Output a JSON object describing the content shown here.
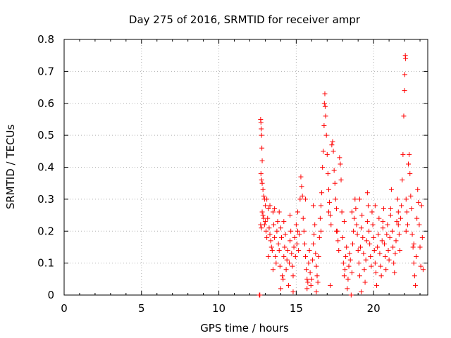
{
  "chart_data": {
    "type": "scatter",
    "title": "Day 275 of 2016, SRMTID for receiver ampr",
    "xlabel": "GPS time / hours",
    "ylabel": "SRMTID / TECUs",
    "xlim": [
      0,
      23.5
    ],
    "ylim": [
      0,
      0.8
    ],
    "xticks": [
      "0",
      "5",
      "10",
      "15",
      "20"
    ],
    "xtick_values": [
      0,
      5,
      10,
      15,
      20
    ],
    "yticks": [
      "0",
      "0.1",
      "0.2",
      "0.3",
      "0.4",
      "0.5",
      "0.6",
      "0.7",
      "0.8"
    ],
    "ytick_values": [
      0,
      0.1,
      0.2,
      0.3,
      0.4,
      0.5,
      0.6,
      0.7,
      0.8
    ],
    "grid": true,
    "marker": "+",
    "series_color": "#ff0000",
    "series": [
      {
        "name": "SRMTID",
        "points": [
          [
            12.62,
            0.0
          ],
          [
            12.65,
            0.0
          ],
          [
            12.7,
            0.55
          ],
          [
            12.72,
            0.54
          ],
          [
            12.74,
            0.52
          ],
          [
            12.76,
            0.5
          ],
          [
            12.78,
            0.46
          ],
          [
            12.8,
            0.42
          ],
          [
            12.72,
            0.38
          ],
          [
            12.76,
            0.36
          ],
          [
            12.8,
            0.35
          ],
          [
            12.85,
            0.33
          ],
          [
            12.9,
            0.31
          ],
          [
            12.95,
            0.3
          ],
          [
            13.0,
            0.28
          ],
          [
            12.7,
            0.22
          ],
          [
            12.75,
            0.21
          ],
          [
            12.8,
            0.26
          ],
          [
            12.85,
            0.25
          ],
          [
            12.9,
            0.24
          ],
          [
            12.95,
            0.22
          ],
          [
            13.0,
            0.23
          ],
          [
            13.05,
            0.2
          ],
          [
            13.1,
            0.18
          ],
          [
            13.15,
            0.24
          ],
          [
            13.2,
            0.27
          ],
          [
            13.25,
            0.21
          ],
          [
            13.3,
            0.19
          ],
          [
            13.35,
            0.17
          ],
          [
            13.4,
            0.15
          ],
          [
            13.45,
            0.14
          ],
          [
            13.5,
            0.26
          ],
          [
            13.55,
            0.22
          ],
          [
            13.6,
            0.18
          ],
          [
            13.65,
            0.12
          ],
          [
            13.7,
            0.1
          ],
          [
            13.75,
            0.2
          ],
          [
            13.8,
            0.23
          ],
          [
            13.85,
            0.16
          ],
          [
            13.9,
            0.14
          ],
          [
            13.95,
            0.09
          ],
          [
            14.0,
            0.21
          ],
          [
            14.05,
            0.18
          ],
          [
            14.1,
            0.06
          ],
          [
            14.15,
            0.05
          ],
          [
            14.2,
            0.12
          ],
          [
            14.25,
            0.15
          ],
          [
            14.3,
            0.19
          ],
          [
            14.35,
            0.08
          ],
          [
            14.4,
            0.11
          ],
          [
            14.45,
            0.14
          ],
          [
            14.5,
            0.03
          ],
          [
            14.55,
            0.1
          ],
          [
            14.6,
            0.17
          ],
          [
            14.65,
            0.2
          ],
          [
            14.7,
            0.13
          ],
          [
            14.75,
            0.09
          ],
          [
            14.8,
            0.06
          ],
          [
            14.85,
            0.15
          ],
          [
            14.9,
            0.18
          ],
          [
            14.95,
            0.12
          ],
          [
            15.0,
            0.22
          ],
          [
            15.05,
            0.16
          ],
          [
            15.1,
            0.26
          ],
          [
            15.15,
            0.14
          ],
          [
            15.2,
            0.19
          ],
          [
            15.25,
            0.3
          ],
          [
            15.3,
            0.37
          ],
          [
            15.35,
            0.34
          ],
          [
            15.4,
            0.31
          ],
          [
            15.45,
            0.24
          ],
          [
            15.5,
            0.2
          ],
          [
            15.55,
            0.16
          ],
          [
            15.6,
            0.12
          ],
          [
            15.65,
            0.08
          ],
          [
            15.7,
            0.05
          ],
          [
            15.75,
            0.04
          ],
          [
            15.8,
            0.1
          ],
          [
            15.85,
            0.14
          ],
          [
            15.9,
            0.07
          ],
          [
            15.95,
            0.03
          ],
          [
            16.0,
            0.05
          ],
          [
            16.05,
            0.11
          ],
          [
            16.1,
            0.16
          ],
          [
            16.15,
            0.19
          ],
          [
            16.2,
            0.22
          ],
          [
            16.25,
            0.13
          ],
          [
            16.3,
            0.09
          ],
          [
            16.35,
            0.06
          ],
          [
            16.4,
            0.04
          ],
          [
            16.45,
            0.12
          ],
          [
            16.5,
            0.18
          ],
          [
            16.55,
            0.24
          ],
          [
            16.6,
            0.28
          ],
          [
            16.65,
            0.32
          ],
          [
            16.7,
            0.4
          ],
          [
            16.75,
            0.45
          ],
          [
            16.8,
            0.53
          ],
          [
            16.82,
            0.6
          ],
          [
            16.85,
            0.63
          ],
          [
            16.87,
            0.59
          ],
          [
            16.9,
            0.56
          ],
          [
            16.95,
            0.5
          ],
          [
            17.0,
            0.44
          ],
          [
            17.05,
            0.38
          ],
          [
            17.1,
            0.33
          ],
          [
            17.15,
            0.29
          ],
          [
            17.2,
            0.25
          ],
          [
            17.25,
            0.22
          ],
          [
            17.3,
            0.47
          ],
          [
            17.35,
            0.48
          ],
          [
            17.4,
            0.45
          ],
          [
            17.45,
            0.39
          ],
          [
            17.5,
            0.35
          ],
          [
            17.55,
            0.3
          ],
          [
            17.6,
            0.27
          ],
          [
            17.65,
            0.2
          ],
          [
            17.7,
            0.17
          ],
          [
            17.75,
            0.14
          ],
          [
            17.8,
            0.43
          ],
          [
            17.85,
            0.41
          ],
          [
            17.9,
            0.36
          ],
          [
            17.95,
            0.26
          ],
          [
            18.0,
            0.18
          ],
          [
            18.05,
            0.1
          ],
          [
            18.1,
            0.06
          ],
          [
            18.15,
            0.08
          ],
          [
            18.2,
            0.12
          ],
          [
            18.25,
            0.15
          ],
          [
            18.3,
            0.02
          ],
          [
            18.35,
            0.05
          ],
          [
            18.4,
            0.09
          ],
          [
            18.45,
            0.13
          ],
          [
            18.5,
            0.11
          ],
          [
            18.55,
            0.0
          ],
          [
            18.6,
            0.07
          ],
          [
            18.65,
            0.16
          ],
          [
            18.7,
            0.2
          ],
          [
            18.75,
            0.24
          ],
          [
            18.8,
            0.3
          ],
          [
            18.85,
            0.27
          ],
          [
            18.9,
            0.22
          ],
          [
            18.95,
            0.19
          ],
          [
            19.0,
            0.14
          ],
          [
            19.05,
            0.1
          ],
          [
            19.1,
            0.06
          ],
          [
            19.15,
            0.15
          ],
          [
            19.2,
            0.21
          ],
          [
            19.25,
            0.25
          ],
          [
            19.3,
            0.18
          ],
          [
            19.35,
            0.13
          ],
          [
            19.4,
            0.08
          ],
          [
            19.45,
            0.04
          ],
          [
            19.5,
            0.11
          ],
          [
            19.55,
            0.17
          ],
          [
            19.6,
            0.23
          ],
          [
            19.65,
            0.28
          ],
          [
            19.7,
            0.2
          ],
          [
            19.75,
            0.16
          ],
          [
            19.8,
            0.12
          ],
          [
            19.85,
            0.09
          ],
          [
            19.9,
            0.26
          ],
          [
            19.95,
            0.22
          ],
          [
            20.0,
            0.18
          ],
          [
            20.05,
            0.14
          ],
          [
            20.1,
            0.1
          ],
          [
            20.15,
            0.07
          ],
          [
            20.2,
            0.03
          ],
          [
            20.25,
            0.15
          ],
          [
            20.3,
            0.19
          ],
          [
            20.35,
            0.24
          ],
          [
            20.4,
            0.13
          ],
          [
            20.45,
            0.09
          ],
          [
            20.5,
            0.06
          ],
          [
            20.55,
            0.17
          ],
          [
            20.6,
            0.21
          ],
          [
            20.65,
            0.27
          ],
          [
            20.7,
            0.16
          ],
          [
            20.75,
            0.12
          ],
          [
            20.8,
            0.08
          ],
          [
            20.85,
            0.19
          ],
          [
            20.9,
            0.22
          ],
          [
            20.95,
            0.14
          ],
          [
            21.0,
            0.11
          ],
          [
            21.05,
            0.18
          ],
          [
            21.1,
            0.25
          ],
          [
            21.15,
            0.33
          ],
          [
            21.2,
            0.2
          ],
          [
            21.25,
            0.15
          ],
          [
            21.3,
            0.1
          ],
          [
            21.35,
            0.07
          ],
          [
            21.4,
            0.13
          ],
          [
            21.45,
            0.17
          ],
          [
            21.5,
            0.23
          ],
          [
            21.55,
            0.3
          ],
          [
            21.6,
            0.26
          ],
          [
            21.65,
            0.19
          ],
          [
            21.7,
            0.14
          ],
          [
            21.75,
            0.24
          ],
          [
            21.8,
            0.28
          ],
          [
            21.85,
            0.36
          ],
          [
            21.9,
            0.44
          ],
          [
            21.95,
            0.56
          ],
          [
            22.0,
            0.64
          ],
          [
            22.02,
            0.69
          ],
          [
            22.05,
            0.75
          ],
          [
            22.07,
            0.74
          ],
          [
            22.1,
            0.3
          ],
          [
            22.15,
            0.26
          ],
          [
            22.2,
            0.22
          ],
          [
            22.25,
            0.41
          ],
          [
            22.3,
            0.44
          ],
          [
            22.35,
            0.38
          ],
          [
            22.4,
            0.31
          ],
          [
            22.45,
            0.27
          ],
          [
            22.5,
            0.19
          ],
          [
            22.55,
            0.15
          ],
          [
            22.6,
            0.1
          ],
          [
            22.65,
            0.06
          ],
          [
            22.7,
            0.03
          ],
          [
            22.75,
            0.12
          ],
          [
            22.8,
            0.24
          ],
          [
            22.85,
            0.33
          ],
          [
            22.9,
            0.29
          ],
          [
            22.95,
            0.22
          ],
          [
            23.0,
            0.15
          ],
          [
            23.05,
            0.09
          ],
          [
            23.1,
            0.28
          ],
          [
            23.15,
            0.18
          ],
          [
            23.2,
            0.08
          ],
          [
            13.1,
            0.3
          ],
          [
            13.3,
            0.28
          ],
          [
            13.6,
            0.27
          ],
          [
            13.9,
            0.26
          ],
          [
            14.2,
            0.23
          ],
          [
            14.6,
            0.25
          ],
          [
            15.1,
            0.2
          ],
          [
            15.6,
            0.3
          ],
          [
            16.1,
            0.28
          ],
          [
            16.6,
            0.2
          ],
          [
            17.1,
            0.26
          ],
          [
            17.6,
            0.2
          ],
          [
            18.1,
            0.23
          ],
          [
            18.6,
            0.26
          ],
          [
            19.1,
            0.3
          ],
          [
            19.6,
            0.32
          ],
          [
            20.1,
            0.28
          ],
          [
            20.6,
            0.23
          ],
          [
            21.1,
            0.27
          ],
          [
            21.6,
            0.22
          ],
          [
            22.1,
            0.2
          ],
          [
            22.6,
            0.16
          ],
          [
            13.2,
            0.12
          ],
          [
            13.5,
            0.08
          ],
          [
            14.0,
            0.02
          ],
          [
            14.8,
            0.01
          ],
          [
            15.7,
            0.02
          ],
          [
            16.3,
            0.01
          ],
          [
            17.2,
            0.03
          ],
          [
            19.2,
            0.01
          ]
        ]
      }
    ]
  }
}
